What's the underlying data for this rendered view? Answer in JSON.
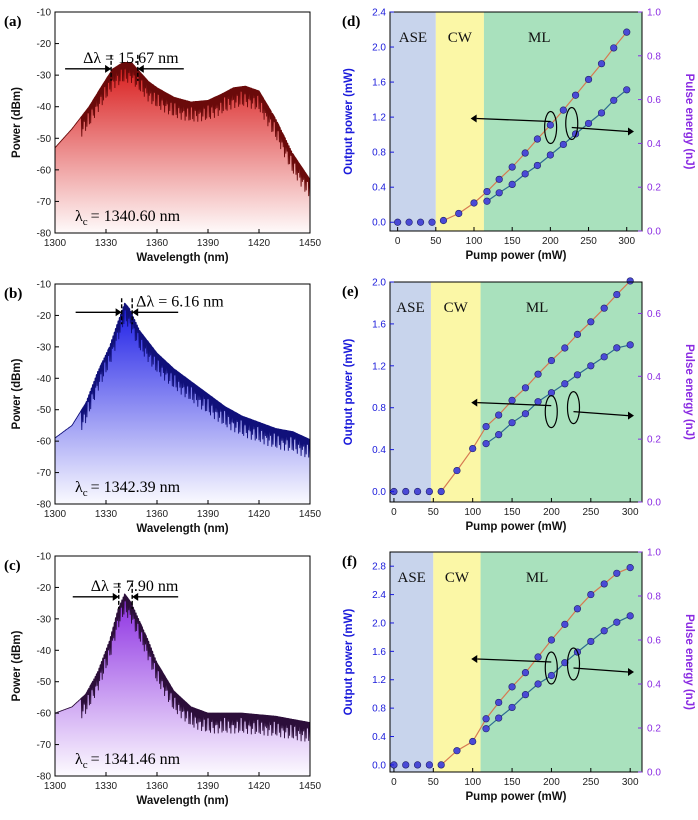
{
  "colors": {
    "spectrum_a": "#d81818",
    "spectrum_a_line": "#6a0a0a",
    "spectrum_b": "#1a1ae6",
    "spectrum_b_line": "#10107a",
    "spectrum_c": "#8a2be2",
    "spectrum_c_line": "#2c0e3a",
    "left_axis": "#1a1adb",
    "right_axis": "#8a2be2",
    "region_ase": "#c8d4ec",
    "region_cw": "#fbf7a6",
    "region_ml": "#a9e1bd",
    "line_output": "#d67a52",
    "line_energy": "#2e6b92",
    "marker": "#4a4ad6"
  },
  "spectra": [
    {
      "panel": "(a)",
      "delta": "Δλ = 15.67 nm",
      "center_prefix": "λ",
      "center_sub": "c",
      "center_value": "= 1340.60 nm",
      "xlabel": "Wavelength (nm)",
      "ylabel": "Power (dBm)",
      "xlim": [
        1300,
        1450
      ],
      "ylim": [
        -80,
        -10
      ],
      "xticks": [
        1300,
        1330,
        1360,
        1390,
        1420,
        1450
      ],
      "yticks": [
        -80,
        -70,
        -60,
        -50,
        -40,
        -30,
        -20,
        -10
      ],
      "color_key": "spectrum_a",
      "line_key": "spectrum_a_line",
      "delta_marks": [
        1333,
        1348.7
      ],
      "delta_level": -28,
      "envelope": [
        [
          1300,
          -53
        ],
        [
          1310,
          -47
        ],
        [
          1320,
          -40
        ],
        [
          1328,
          -33
        ],
        [
          1334,
          -28
        ],
        [
          1340,
          -26
        ],
        [
          1345,
          -26
        ],
        [
          1350,
          -29
        ],
        [
          1355,
          -32
        ],
        [
          1360,
          -34
        ],
        [
          1370,
          -37
        ],
        [
          1380,
          -38.5
        ],
        [
          1390,
          -38
        ],
        [
          1398,
          -36
        ],
        [
          1405,
          -34
        ],
        [
          1412,
          -33.5
        ],
        [
          1420,
          -35
        ],
        [
          1430,
          -44
        ],
        [
          1440,
          -55
        ],
        [
          1450,
          -63
        ]
      ]
    },
    {
      "panel": "(b)",
      "delta": "Δλ = 6.16 nm",
      "center_prefix": "λ",
      "center_sub": "c",
      "center_value": "= 1342.39 nm",
      "xlabel": "Wavelength (nm)",
      "ylabel": "Power (dBm)",
      "xlim": [
        1300,
        1450
      ],
      "ylim": [
        -80,
        -10
      ],
      "xticks": [
        1300,
        1330,
        1360,
        1390,
        1420,
        1450
      ],
      "yticks": [
        -80,
        -70,
        -60,
        -50,
        -40,
        -30,
        -20,
        -10
      ],
      "color_key": "spectrum_b",
      "line_key": "spectrum_b_line",
      "delta_marks": [
        1339.2,
        1345.4
      ],
      "delta_level": -19,
      "envelope": [
        [
          1300,
          -59
        ],
        [
          1310,
          -55
        ],
        [
          1318,
          -48
        ],
        [
          1325,
          -38
        ],
        [
          1332,
          -30
        ],
        [
          1337,
          -22
        ],
        [
          1341,
          -16
        ],
        [
          1344,
          -18
        ],
        [
          1350,
          -25
        ],
        [
          1360,
          -32
        ],
        [
          1370,
          -37
        ],
        [
          1380,
          -41
        ],
        [
          1390,
          -45
        ],
        [
          1400,
          -49
        ],
        [
          1410,
          -52
        ],
        [
          1420,
          -54
        ],
        [
          1430,
          -56
        ],
        [
          1440,
          -57
        ],
        [
          1450,
          -59.5
        ]
      ]
    },
    {
      "panel": "(c)",
      "delta": "Δλ = 7.90 nm",
      "center_prefix": "λ",
      "center_sub": "c",
      "center_value": "= 1341.46 nm",
      "xlabel": "Wavelength (nm)",
      "ylabel": "Power (dBm)",
      "xlim": [
        1300,
        1450
      ],
      "ylim": [
        -80,
        -10
      ],
      "xticks": [
        1300,
        1330,
        1360,
        1390,
        1420,
        1450
      ],
      "yticks": [
        -80,
        -70,
        -60,
        -50,
        -40,
        -30,
        -20,
        -10
      ],
      "color_key": "spectrum_c",
      "line_key": "spectrum_c_line",
      "delta_marks": [
        1337.5,
        1345.4
      ],
      "delta_level": -23,
      "envelope": [
        [
          1300,
          -60
        ],
        [
          1310,
          -58
        ],
        [
          1318,
          -54
        ],
        [
          1325,
          -47
        ],
        [
          1332,
          -37
        ],
        [
          1337,
          -27
        ],
        [
          1341,
          -22
        ],
        [
          1345,
          -25
        ],
        [
          1350,
          -31
        ],
        [
          1355,
          -37
        ],
        [
          1360,
          -44
        ],
        [
          1370,
          -53
        ],
        [
          1380,
          -58
        ],
        [
          1390,
          -60
        ],
        [
          1400,
          -60
        ],
        [
          1410,
          -60
        ],
        [
          1420,
          -60.5
        ],
        [
          1430,
          -61
        ],
        [
          1440,
          -62
        ],
        [
          1450,
          -63
        ]
      ]
    }
  ],
  "pump_panels": [
    {
      "panel": "(d)",
      "xlabel": "Pump power (mW)",
      "ylabel_left": "Output power (mW)",
      "ylabel_right": "Pulse energy (nJ)",
      "xlim": [
        -10,
        320
      ],
      "xticks": [
        0,
        50,
        100,
        150,
        200,
        250,
        300
      ],
      "ylim_left": [
        -0.1,
        2.4
      ],
      "yticks_left": [
        "0.0",
        "0.4",
        "0.8",
        "1.2",
        "1.6",
        "2.0",
        "2.4"
      ],
      "ylim_right": [
        0.0,
        1.0
      ],
      "yticks_right": [
        "0.0",
        "0.2",
        "0.4",
        "0.6",
        "0.8",
        "1.0"
      ],
      "regions": [
        {
          "label": "ASE",
          "from": -10,
          "to": 50
        },
        {
          "label": "CW",
          "from": 50,
          "to": 113
        },
        {
          "label": "ML",
          "from": 113,
          "to": 320
        }
      ],
      "arrow_left_y": 1.15,
      "arrow_right_y": 1.15,
      "series": [
        {
          "x": [
            0,
            15,
            30,
            45,
            60,
            80,
            100,
            117,
            133,
            150,
            167,
            183,
            200,
            217,
            233,
            250,
            267,
            283,
            300
          ],
          "y": [
            0.0,
            0.0,
            0.0,
            0.0,
            0.02,
            0.1,
            0.22,
            0.35,
            0.49,
            0.63,
            0.79,
            0.95,
            1.11,
            1.28,
            1.45,
            1.63,
            1.81,
            1.99,
            2.17
          ]
        },
        {
          "x": [
            117,
            133,
            150,
            167,
            183,
            200,
            217,
            233,
            250,
            267,
            283,
            300
          ],
          "y": [
            0.1,
            0.14,
            0.18,
            0.23,
            0.27,
            0.32,
            0.37,
            0.42,
            0.47,
            0.52,
            0.58,
            0.63
          ]
        }
      ]
    },
    {
      "panel": "(e)",
      "xlabel": "Pump power (mW)",
      "ylabel_left": "Output power (mW)",
      "ylabel_right": "Pulse energy (nJ)",
      "xlim": [
        -5,
        315
      ],
      "xticks": [
        0,
        50,
        100,
        150,
        200,
        250,
        300
      ],
      "ylim_left": [
        -0.1,
        2.0
      ],
      "yticks_left": [
        "0.0",
        "0.4",
        "0.8",
        "1.2",
        "1.6",
        "2.0"
      ],
      "ylim_right": [
        0.0,
        0.7
      ],
      "yticks_right": [
        "0.0",
        "0.2",
        "0.4",
        "0.6"
      ],
      "regions": [
        {
          "label": "ASE",
          "from": -5,
          "to": 47
        },
        {
          "label": "CW",
          "from": 47,
          "to": 110
        },
        {
          "label": "ML",
          "from": 110,
          "to": 315
        }
      ],
      "arrow_left_y": 0.82,
      "arrow_right_y": 0.82,
      "series": [
        {
          "x": [
            0,
            15,
            30,
            45,
            60,
            80,
            100,
            117,
            133,
            150,
            167,
            183,
            200,
            217,
            233,
            250,
            267,
            283,
            300
          ],
          "y": [
            0.0,
            0.0,
            0.0,
            0.0,
            0.0,
            0.2,
            0.41,
            0.62,
            0.73,
            0.87,
            0.99,
            1.12,
            1.25,
            1.37,
            1.5,
            1.62,
            1.75,
            1.88,
            2.01
          ]
        },
        {
          "x": [
            117,
            133,
            150,
            167,
            183,
            200,
            217,
            233,
            250,
            267,
            283,
            300
          ],
          "y": [
            0.16,
            0.19,
            0.23,
            0.26,
            0.3,
            0.33,
            0.36,
            0.39,
            0.42,
            0.45,
            0.48,
            0.49
          ]
        }
      ]
    },
    {
      "panel": "(f)",
      "xlabel": "Pump power (mW)",
      "ylabel_left": "Output power (mW)",
      "ylabel_right": "Pulse energy (nJ)",
      "xlim": [
        -5,
        315
      ],
      "xticks": [
        0,
        50,
        100,
        150,
        200,
        250,
        300
      ],
      "ylim_left": [
        -0.1,
        3.0
      ],
      "yticks_left": [
        "0.0",
        "0.4",
        "0.8",
        "1.2",
        "1.6",
        "2.0",
        "2.4",
        "2.8"
      ],
      "ylim_right": [
        0.0,
        1.0
      ],
      "yticks_right": [
        "0.0",
        "0.2",
        "0.4",
        "0.6",
        "0.8",
        "1.0"
      ],
      "regions": [
        {
          "label": "ASE",
          "from": -5,
          "to": 50
        },
        {
          "label": "CW",
          "from": 50,
          "to": 110
        },
        {
          "label": "ML",
          "from": 110,
          "to": 315
        }
      ],
      "arrow_left_y": 1.45,
      "arrow_right_y": 1.45,
      "series": [
        {
          "x": [
            0,
            15,
            30,
            45,
            60,
            80,
            100,
            117,
            133,
            150,
            167,
            183,
            200,
            217,
            233,
            250,
            267,
            283,
            300
          ],
          "y": [
            0.0,
            0.0,
            0.0,
            0.0,
            0.0,
            0.2,
            0.33,
            0.65,
            0.88,
            1.1,
            1.3,
            1.52,
            1.76,
            1.98,
            2.2,
            2.4,
            2.55,
            2.7,
            2.78
          ]
        },
        {
          "x": [
            117,
            133,
            150,
            167,
            183,
            200,
            217,
            233,
            250,
            267,
            283,
            300
          ],
          "y": [
            0.17,
            0.22,
            0.27,
            0.33,
            0.38,
            0.42,
            0.48,
            0.53,
            0.58,
            0.63,
            0.67,
            0.7
          ]
        }
      ]
    }
  ],
  "chart_data": [
    {
      "type": "area",
      "panel": "(a)",
      "xlabel": "Wavelength (nm)",
      "ylabel": "Power (dBm)",
      "annotations": [
        "Δλ = 15.67 nm",
        "λc = 1340.60 nm"
      ]
    },
    {
      "type": "area",
      "panel": "(b)",
      "xlabel": "Wavelength (nm)",
      "ylabel": "Power (dBm)",
      "annotations": [
        "Δλ = 6.16 nm",
        "λc = 1342.39 nm"
      ]
    },
    {
      "type": "area",
      "panel": "(c)",
      "xlabel": "Wavelength (nm)",
      "ylabel": "Power (dBm)",
      "annotations": [
        "Δλ = 7.90 nm",
        "λc = 1341.46 nm"
      ]
    },
    {
      "type": "scatter",
      "panel": "(d)",
      "xlabel": "Pump power (mW)",
      "ylabel": "Output power (mW)",
      "ylabel_right": "Pulse energy (nJ)"
    },
    {
      "type": "scatter",
      "panel": "(e)",
      "xlabel": "Pump power (mW)",
      "ylabel": "Output power (mW)",
      "ylabel_right": "Pulse energy (nJ)"
    },
    {
      "type": "scatter",
      "panel": "(f)",
      "xlabel": "Pump power (mW)",
      "ylabel": "Output power (mW)",
      "ylabel_right": "Pulse energy (nJ)"
    }
  ]
}
